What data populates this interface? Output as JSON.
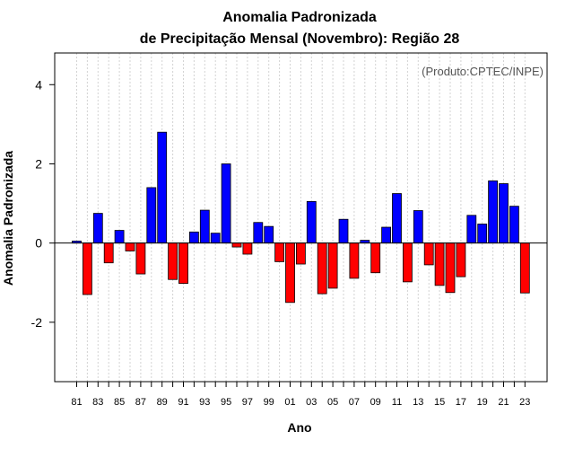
{
  "chart_data": {
    "type": "bar",
    "title_line1": "Anomalia Padronizada",
    "title_line2": "de Precipitação Mensal (Novembro): Região 28",
    "xlabel": "Ano",
    "ylabel": "Anomalia Padronizada",
    "annotation": "(Produto:CPTEC/INPE)",
    "ylim": [
      -3.5,
      4.8
    ],
    "yticks": [
      -2,
      0,
      2,
      4
    ],
    "ytick_labels": [
      "-2",
      "0",
      "2",
      "4"
    ],
    "x_tick_labels": [
      "81",
      "83",
      "85",
      "87",
      "89",
      "91",
      "93",
      "95",
      "97",
      "99",
      "01",
      "03",
      "05",
      "07",
      "09",
      "11",
      "13",
      "15",
      "17",
      "19",
      "21",
      "23"
    ],
    "grid": "vertical dotted",
    "colors": {
      "positive": "#0000ff",
      "negative": "#ff0000",
      "grid": "#d3d3d3"
    },
    "categories": [
      "1981",
      "1982",
      "1983",
      "1984",
      "1985",
      "1986",
      "1987",
      "1988",
      "1989",
      "1990",
      "1991",
      "1992",
      "1993",
      "1994",
      "1995",
      "1996",
      "1997",
      "1998",
      "1999",
      "2000",
      "2001",
      "2002",
      "2003",
      "2004",
      "2005",
      "2006",
      "2007",
      "2008",
      "2009",
      "2010",
      "2011",
      "2012",
      "2013",
      "2014",
      "2015",
      "2016",
      "2017",
      "2018",
      "2019",
      "2020",
      "2021",
      "2022",
      "2023"
    ],
    "values": [
      0.05,
      -1.3,
      0.75,
      -0.5,
      0.32,
      -0.2,
      -0.78,
      1.4,
      2.8,
      -0.92,
      -1.02,
      0.28,
      0.83,
      0.25,
      2.0,
      -0.1,
      -0.28,
      0.52,
      0.42,
      -0.47,
      -1.5,
      -0.53,
      1.05,
      -1.28,
      -1.14,
      0.6,
      -0.89,
      0.07,
      -0.75,
      0.4,
      1.25,
      -0.98,
      0.82,
      -0.55,
      -1.07,
      -1.25,
      -0.85,
      0.7,
      0.48,
      1.57,
      1.5,
      0.93,
      -1.26
    ]
  }
}
